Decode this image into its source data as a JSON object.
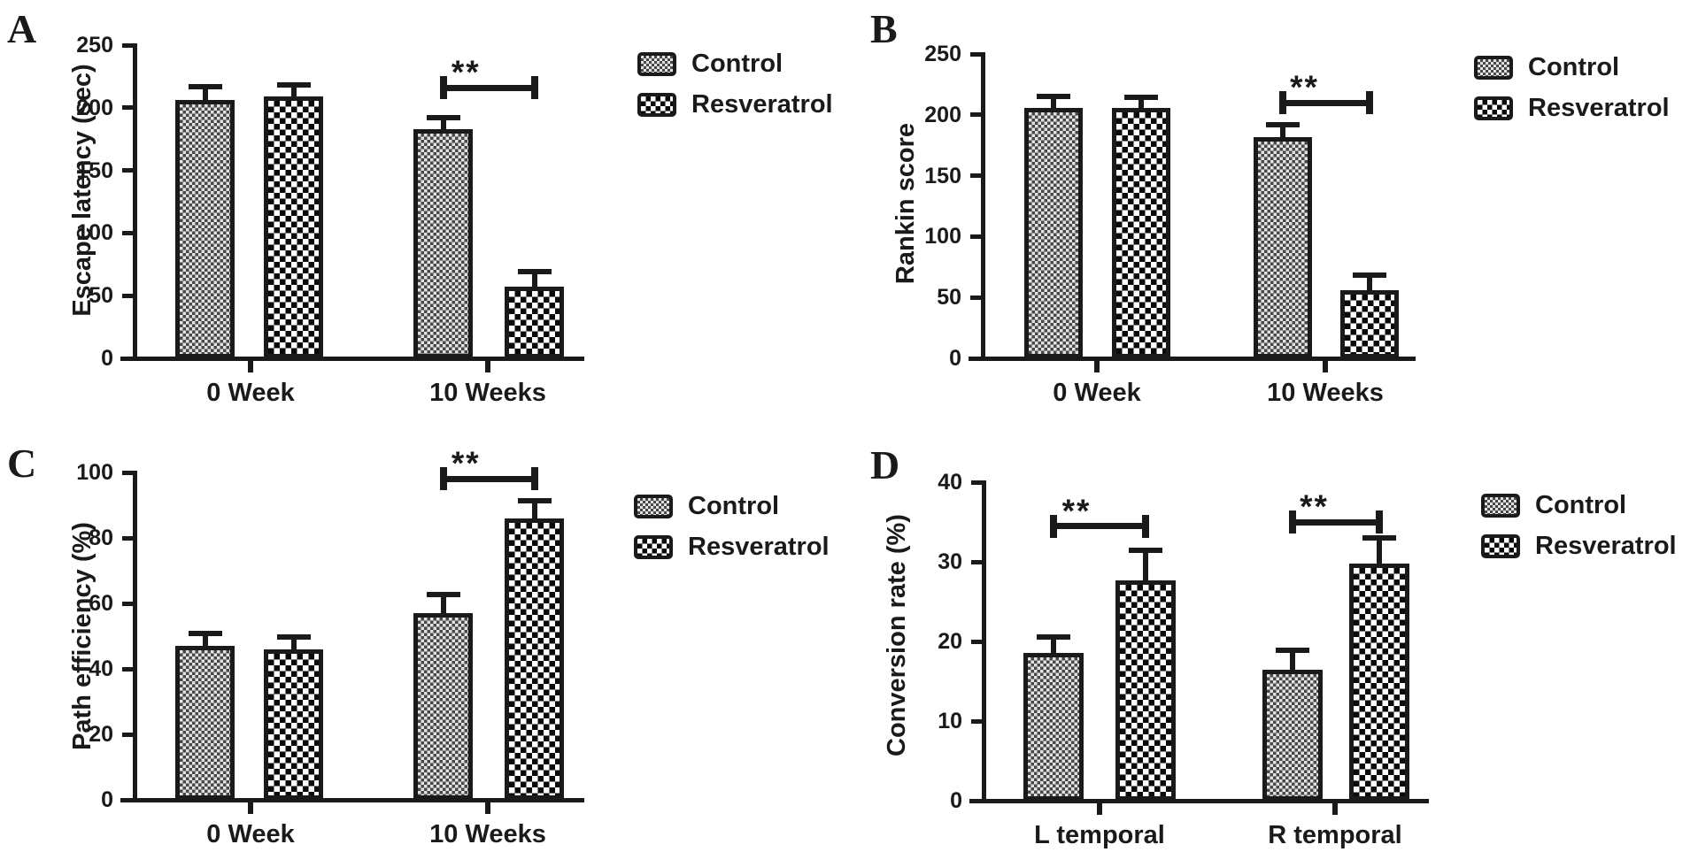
{
  "figure": {
    "background": "#ffffff"
  },
  "colors": {
    "ink": "#1a1a1a",
    "control_pattern_dark": "#474747",
    "control_pattern_light": "#e2e2e2",
    "resveratrol_pattern_dark": "#0a0a0a",
    "resveratrol_pattern_light": "#ffffff"
  },
  "legend": {
    "control_label": "Control",
    "resveratrol_label": "Resveratrol"
  },
  "chart_data": [
    {
      "panel": "A",
      "type": "bar",
      "title": "",
      "xlabel": "",
      "ylabel": "Escape latency (sec)",
      "ylim": [
        0,
        250
      ],
      "yticks": [
        0,
        50,
        100,
        150,
        200,
        250
      ],
      "categories": [
        "0 Week",
        "10 Weeks"
      ],
      "series": [
        {
          "name": "Control",
          "pattern": "fine-checker",
          "values": [
            206,
            183
          ],
          "errors": [
            9,
            7
          ]
        },
        {
          "name": "Resveratrol",
          "pattern": "coarse-checker",
          "values": [
            209,
            57
          ],
          "errors": [
            7,
            10
          ]
        }
      ],
      "significance": [
        {
          "category_index": 1,
          "label": "**",
          "y": 216
        }
      ]
    },
    {
      "panel": "B",
      "type": "bar",
      "title": "",
      "xlabel": "",
      "ylabel": "Rankin score",
      "ylim": [
        0,
        250
      ],
      "yticks": [
        0,
        50,
        100,
        150,
        200,
        250
      ],
      "categories": [
        "0 Week",
        "10 Weeks"
      ],
      "series": [
        {
          "name": "Control",
          "pattern": "fine-checker",
          "values": [
            206,
            182
          ],
          "errors": [
            7,
            8
          ]
        },
        {
          "name": "Resveratrol",
          "pattern": "coarse-checker",
          "values": [
            206,
            56
          ],
          "errors": [
            6,
            10
          ]
        }
      ],
      "significance": [
        {
          "category_index": 1,
          "label": "**",
          "y": 210
        }
      ]
    },
    {
      "panel": "C",
      "type": "bar",
      "title": "",
      "xlabel": "",
      "ylabel": "Path efficiency (%)",
      "ylim": [
        0,
        100
      ],
      "yticks": [
        0,
        20,
        40,
        60,
        80,
        100
      ],
      "categories": [
        "0 Week",
        "10 Weeks"
      ],
      "series": [
        {
          "name": "Control",
          "pattern": "fine-checker",
          "values": [
            47,
            57
          ],
          "errors": [
            3,
            5
          ]
        },
        {
          "name": "Resveratrol",
          "pattern": "coarse-checker",
          "values": [
            46,
            86
          ],
          "errors": [
            3,
            4.5
          ]
        }
      ],
      "significance": [
        {
          "category_index": 1,
          "label": "**",
          "y": 98
        }
      ]
    },
    {
      "panel": "D",
      "type": "bar",
      "title": "",
      "xlabel": "",
      "ylabel": "Conversion rate (%)",
      "ylim": [
        0,
        40
      ],
      "yticks": [
        0,
        10,
        20,
        30,
        40
      ],
      "categories": [
        "L temporal",
        "R temporal"
      ],
      "series": [
        {
          "name": "Control",
          "pattern": "fine-checker",
          "values": [
            18.6,
            16.4
          ],
          "errors": [
            1.6,
            2.2
          ]
        },
        {
          "name": "Resveratrol",
          "pattern": "coarse-checker",
          "values": [
            27.7,
            29.8
          ],
          "errors": [
            3.4,
            2.9
          ]
        }
      ],
      "significance": [
        {
          "category_index": 0,
          "label": "**",
          "y": 34.5
        },
        {
          "category_index": 1,
          "label": "**",
          "y": 35
        }
      ]
    }
  ]
}
